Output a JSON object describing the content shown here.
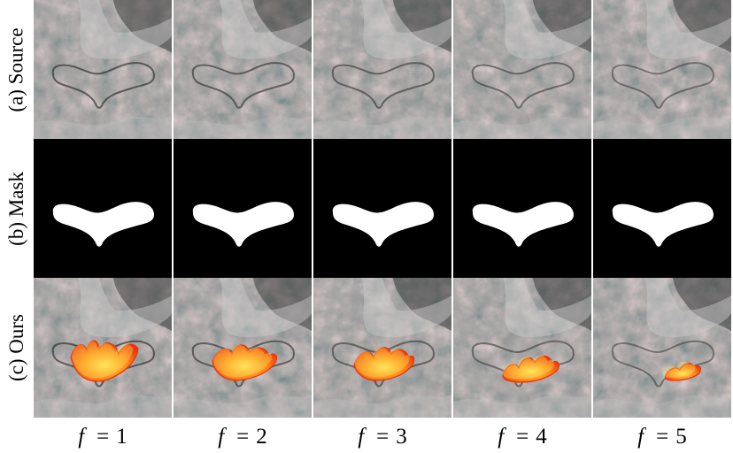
{
  "rows": [
    {
      "id": "source",
      "label": "(a) Source"
    },
    {
      "id": "mask",
      "label": "(b) Mask"
    },
    {
      "id": "ours",
      "label": "(c) Ours"
    }
  ],
  "columns": [
    {
      "var": "f",
      "eq": "=",
      "value": "1"
    },
    {
      "var": "f",
      "eq": "=",
      "value": "2"
    },
    {
      "var": "f",
      "eq": "=",
      "value": "3"
    },
    {
      "var": "f",
      "eq": "=",
      "value": "4"
    },
    {
      "var": "f",
      "eq": "=",
      "value": "5"
    }
  ],
  "colors": {
    "background": "#ffffff",
    "mask_background": "#000000",
    "mask_shape": "#ffffff",
    "fire_outer": "#e8320c",
    "fire_mid": "#ff8a1a",
    "fire_core": "#ffe65a"
  }
}
